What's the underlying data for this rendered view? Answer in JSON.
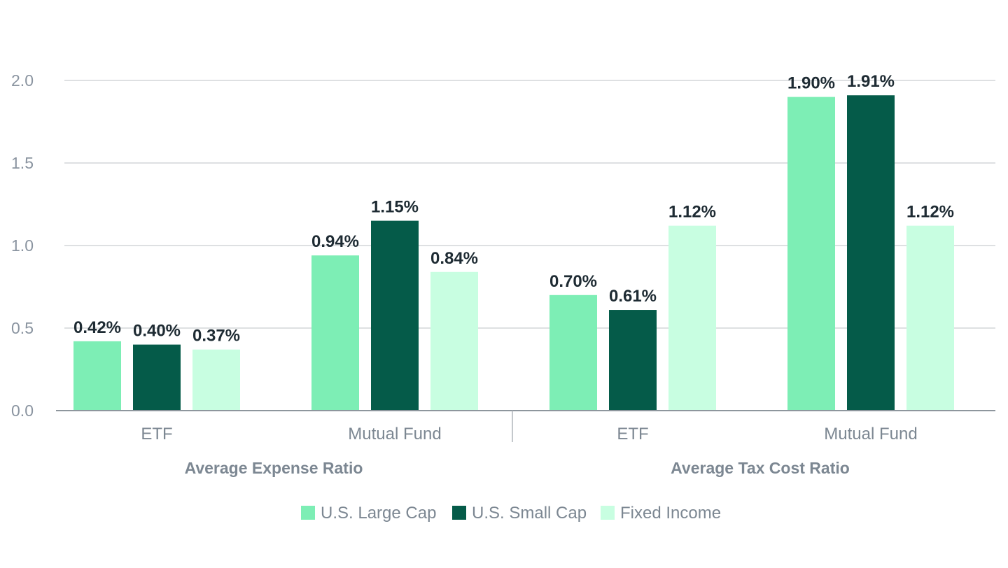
{
  "chart_data": {
    "type": "bar",
    "groups": [
      {
        "label": "Average Expense Ratio",
        "categories": [
          "ETF",
          "Mutual Fund"
        ]
      },
      {
        "label": "Average Tax Cost Ratio",
        "categories": [
          "ETF",
          "Mutual Fund"
        ]
      }
    ],
    "categories": [
      "ETF",
      "Mutual Fund",
      "ETF",
      "Mutual Fund"
    ],
    "series": [
      {
        "name": "U.S. Large Cap",
        "color": "#7deeb5",
        "values": [
          0.42,
          0.94,
          0.7,
          1.9
        ],
        "labels": [
          "0.42%",
          "0.94%",
          "0.70%",
          "1.90%"
        ]
      },
      {
        "name": "U.S. Small Cap",
        "color": "#055b49",
        "values": [
          0.4,
          1.15,
          0.61,
          1.91
        ],
        "labels": [
          "0.40%",
          "1.15%",
          "0.61%",
          "1.91%"
        ]
      },
      {
        "name": "Fixed Income",
        "color": "#c8fee1",
        "values": [
          0.37,
          0.84,
          1.12,
          1.12
        ],
        "labels": [
          "0.37%",
          "0.84%",
          "1.12%",
          "1.12%"
        ]
      }
    ],
    "y_ticks": [
      "0.0",
      "0.5",
      "1.0",
      "1.5",
      "2.0"
    ],
    "ylim": [
      0,
      2.0
    ],
    "grid": true,
    "legend_position": "bottom"
  }
}
